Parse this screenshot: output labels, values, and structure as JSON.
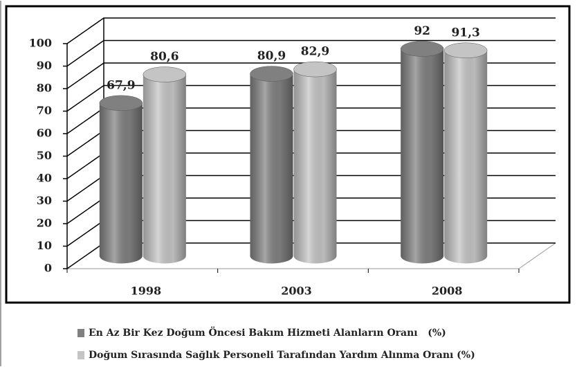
{
  "chart_data": {
    "type": "bar",
    "categories": [
      "1998",
      "2003",
      "2008"
    ],
    "series": [
      {
        "name": "En Az Bir Kez Doğum Öncesi Bakım Hizmeti Alanların Oranı   (%)",
        "color": "#808080",
        "values": [
          67.9,
          80.9,
          92
        ],
        "value_labels": [
          "67,9",
          "80,9",
          "92"
        ]
      },
      {
        "name": "Doğum Sırasında Sağlık Personeli Tarafından Yardım Alınma Oranı (%)",
        "color": "#c4c4c4",
        "values": [
          80.6,
          82.9,
          91.3
        ],
        "value_labels": [
          "80,6",
          "82,9",
          "91,3"
        ]
      }
    ],
    "ylim": [
      0,
      100
    ],
    "yticks": [
      0,
      10,
      20,
      30,
      40,
      50,
      60,
      70,
      80,
      90,
      100
    ],
    "grid": true
  }
}
